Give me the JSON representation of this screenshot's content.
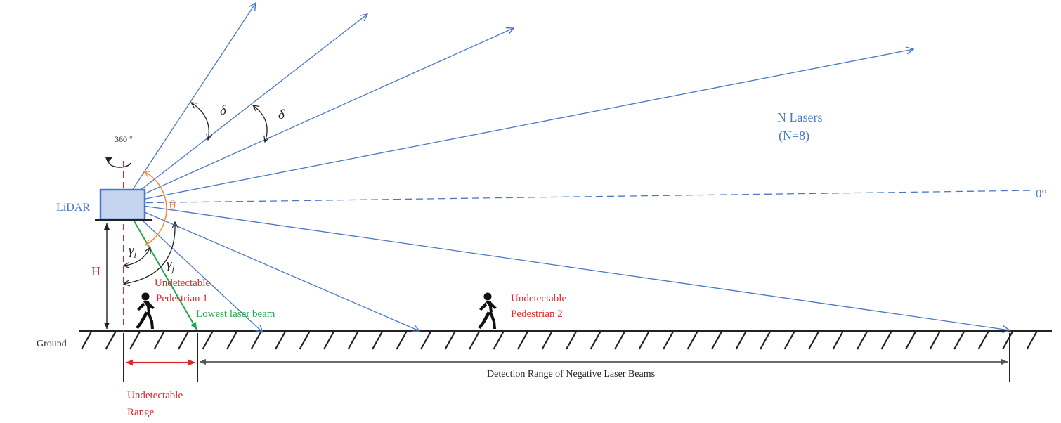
{
  "labels": {
    "lidar": "LiDAR",
    "rotation": "360 °",
    "zero_degree": "0°",
    "n_lasers_line1": "N Lasers",
    "n_lasers_line2": "(N=8)",
    "height": "H",
    "theta": "θ",
    "delta1": "δ",
    "delta2": "δ",
    "gamma_i": "γ",
    "gamma_i_sub": "i",
    "gamma_j": "γ",
    "gamma_j_sub": "j",
    "undetectable_ped1_line1": "Undetectable",
    "undetectable_ped1_line2": "Pedestrian 1",
    "undetectable_ped2_line1": "Undetectable",
    "undetectable_ped2_line2": "Pedestrian 2",
    "lowest_beam": "Lowest laser beam",
    "ground": "Ground",
    "detection_range": "Detection Range of Negative Laser Beams",
    "undetectable_range_line1": "Undetectable",
    "undetectable_range_line2": "Range"
  },
  "colors": {
    "laser_beam": "#4a78c6",
    "lowest_beam": "#1fa74a",
    "annotation_red": "#e0292b",
    "theta_arc": "#f08a3c",
    "lidar_fill": "#c5d5ef",
    "lidar_stroke": "#4a78c6",
    "ground": "#222222"
  },
  "icons": [
    "lidar-sensor-icon",
    "rotation-arrow-icon",
    "pedestrian-icon"
  ]
}
